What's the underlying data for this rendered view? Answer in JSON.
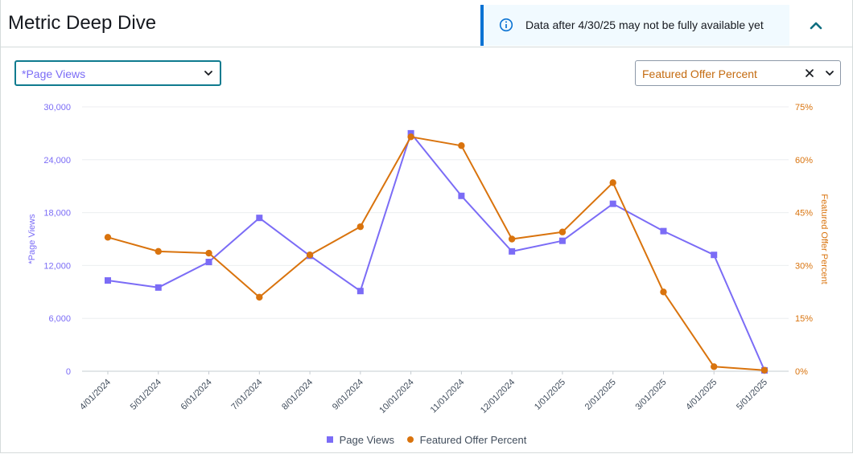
{
  "header": {
    "title": "Metric Deep Dive",
    "banner_text": "Data after 4/30/25 may not be fully available yet",
    "collapse_icon": "chevron-up-icon"
  },
  "controls": {
    "primary_metric": "*Page Views",
    "secondary_metric": "Featured Offer Percent"
  },
  "colors": {
    "page_views": "#7b6cf6",
    "featured_offer": "#d9730d",
    "banner_accent": "#0972d3"
  },
  "chart_data": {
    "type": "line",
    "categories": [
      "4/01/2024",
      "5/01/2024",
      "6/01/2024",
      "7/01/2024",
      "8/01/2024",
      "9/01/2024",
      "10/01/2024",
      "11/01/2024",
      "12/01/2024",
      "1/01/2025",
      "2/01/2025",
      "3/01/2025",
      "4/01/2025",
      "5/01/2025"
    ],
    "series": [
      {
        "name": "Page Views",
        "axis": "left",
        "marker": "square",
        "values": [
          10300,
          9500,
          12400,
          17400,
          13100,
          9100,
          27000,
          19900,
          13600,
          14800,
          19000,
          15900,
          13200,
          100
        ]
      },
      {
        "name": "Featured Offer Percent",
        "axis": "right",
        "marker": "circle",
        "values": [
          38,
          34,
          33.5,
          21,
          33,
          41,
          66.5,
          64,
          37.5,
          39.5,
          53.5,
          22.5,
          1.3,
          0.3
        ]
      }
    ],
    "ylabel": "*Page Views",
    "y2label": "Featured Offer Percent",
    "ylim": [
      0,
      30000
    ],
    "y2lim": [
      0,
      75
    ],
    "yticks": [
      "0",
      "6,000",
      "12,000",
      "18,000",
      "24,000",
      "30,000"
    ],
    "y2ticks": [
      "0%",
      "15%",
      "30%",
      "45%",
      "60%",
      "75%"
    ],
    "grid": true,
    "legend_position": "bottom"
  }
}
